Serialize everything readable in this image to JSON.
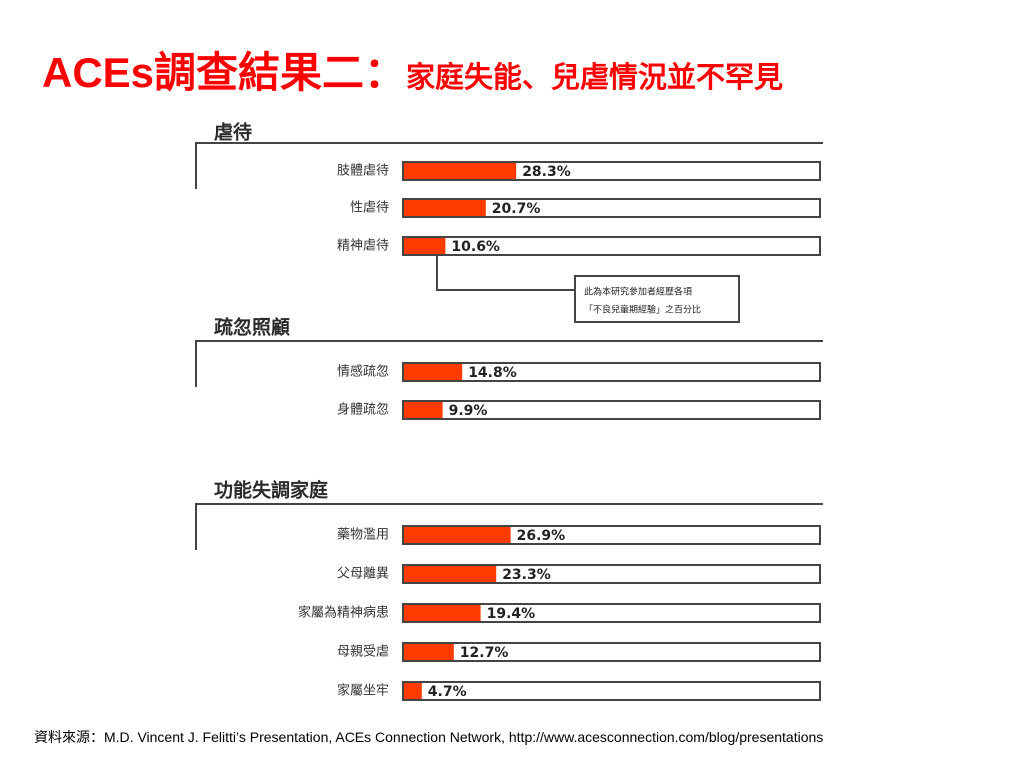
{
  "title": {
    "main": "ACEs調查結果二：",
    "sub": "家庭失能、兒虐情況並不罕見"
  },
  "source": "資料來源：M.D. Vincent J. Felitti’s Presentation, ACEs Connection Network, http://www.acesconnection.com/blog/presentations",
  "colors": {
    "title": "#ff0000",
    "bar": "#ff3b00",
    "frame": "#444444"
  },
  "chart_data": {
    "type": "bar",
    "orientation": "horizontal",
    "unit": "%",
    "xlim": [
      0,
      100
    ],
    "note": [
      "此為本研究參加者經歷各項",
      "「不良兒童期經驗」之百分比"
    ],
    "groups": [
      {
        "name": "虐待",
        "categories": [
          "肢體虐待",
          "性虐待",
          "精神虐待"
        ],
        "values": [
          28.3,
          20.7,
          10.6
        ],
        "labels": [
          "28.3%",
          "20.7%",
          "10.6%"
        ]
      },
      {
        "name": "疏忽照顧",
        "categories": [
          "情感疏忽",
          "身體疏忽"
        ],
        "values": [
          14.8,
          9.9
        ],
        "labels": [
          "14.8%",
          "9.9%"
        ]
      },
      {
        "name": "功能失調家庭",
        "categories": [
          "藥物濫用",
          "父母離異",
          "家屬為精神病患",
          "母親受虐",
          "家屬坐牢"
        ],
        "values": [
          26.9,
          23.3,
          19.4,
          12.7,
          4.7
        ],
        "labels": [
          "26.9%",
          "23.3%",
          "19.4%",
          "12.7%",
          "4.7%"
        ]
      }
    ]
  }
}
